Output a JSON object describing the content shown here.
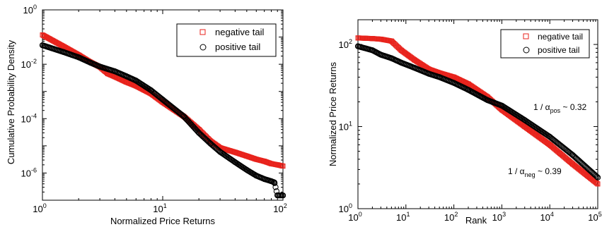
{
  "chart_data": [
    {
      "type": "scatter",
      "xlabel": "Normalized Price Returns",
      "ylabel": "Cumulative Probability Density",
      "xscale": "log",
      "yscale": "log",
      "xlim": [
        1,
        100
      ],
      "ylim": [
        1e-07,
        1
      ],
      "xtick_labels": [
        {
          "base": "10",
          "exp": "0"
        },
        {
          "base": "10",
          "exp": "1"
        },
        {
          "base": "10",
          "exp": "2"
        }
      ],
      "ytick_labels": [
        {
          "base": "10",
          "exp": "0"
        },
        {
          "base": "10",
          "exp": "-2"
        },
        {
          "base": "10",
          "exp": "-4"
        },
        {
          "base": "10",
          "exp": "-6"
        }
      ],
      "legend_position": "top-right",
      "series": [
        {
          "name": "negative tail",
          "marker": "square",
          "color": "#e8231c",
          "points": [
            [
              1.0,
              0.12
            ],
            [
              1.5,
              0.045
            ],
            [
              2.0,
              0.022
            ],
            [
              2.5,
              0.012
            ],
            [
              3.0,
              0.008
            ],
            [
              3.5,
              0.0045
            ],
            [
              4.0,
              0.0035
            ],
            [
              5.0,
              0.0022
            ],
            [
              6.0,
              0.0016
            ],
            [
              8.0,
              0.00083
            ],
            [
              10,
              0.0004
            ],
            [
              15,
              0.00012
            ],
            [
              20,
              4e-05
            ],
            [
              25,
              1.5e-05
            ],
            [
              30,
              8.5e-06
            ],
            [
              40,
              5.8e-06
            ],
            [
              50,
              4.2e-06
            ],
            [
              60,
              3.2e-06
            ],
            [
              70,
              2.7e-06
            ],
            [
              80,
              2.2e-06
            ],
            [
              90,
              2e-06
            ],
            [
              100,
              1.8e-06
            ]
          ]
        },
        {
          "name": "positive tail",
          "marker": "circle",
          "color": "#000000",
          "points": [
            [
              1.0,
              0.05
            ],
            [
              1.5,
              0.028
            ],
            [
              2.0,
              0.018
            ],
            [
              2.5,
              0.0115
            ],
            [
              3.0,
              0.0082
            ],
            [
              4.0,
              0.0055
            ],
            [
              5.0,
              0.0036
            ],
            [
              6.0,
              0.0025
            ],
            [
              8.0,
              0.0011
            ],
            [
              10,
              0.0005
            ],
            [
              15,
              0.00012
            ],
            [
              20,
              3e-05
            ],
            [
              25,
              1.2e-05
            ],
            [
              30,
              6e-06
            ],
            [
              40,
              2.5e-06
            ],
            [
              50,
              1.3e-06
            ],
            [
              60,
              8e-07
            ],
            [
              70,
              6e-07
            ],
            [
              80,
              5e-07
            ],
            [
              85,
              4.5e-07
            ],
            [
              90,
              1.5e-07
            ],
            [
              100,
              1.5e-07
            ]
          ]
        }
      ]
    },
    {
      "type": "scatter",
      "xlabel": "Rank",
      "ylabel": "Normalized Price Returns",
      "xscale": "log",
      "yscale": "log",
      "xlim": [
        1,
        100000
      ],
      "ylim": [
        1,
        200
      ],
      "xtick_labels": [
        {
          "base": "10",
          "exp": "0"
        },
        {
          "base": "10",
          "exp": "1"
        },
        {
          "base": "10",
          "exp": "2"
        },
        {
          "base": "10",
          "exp": "3"
        },
        {
          "base": "10",
          "exp": "4"
        },
        {
          "base": "10",
          "exp": "5"
        }
      ],
      "ytick_labels": [
        {
          "base": "10",
          "exp": "0"
        },
        {
          "base": "10",
          "exp": "1"
        },
        {
          "base": "10",
          "exp": "2"
        }
      ],
      "legend_position": "top-right",
      "annotations": [
        {
          "prefix": "1 / α",
          "sub": "pos",
          "suffix": " ~ 0.32"
        },
        {
          "prefix": "1 / α",
          "sub": "neg",
          "suffix": " ~ 0.39"
        }
      ],
      "series": [
        {
          "name": "negative tail",
          "marker": "square",
          "color": "#e8231c",
          "points": [
            [
              1,
              120
            ],
            [
              2,
              118
            ],
            [
              3,
              116
            ],
            [
              5,
              110
            ],
            [
              8,
              85
            ],
            [
              15,
              65
            ],
            [
              30,
              50
            ],
            [
              50,
              45
            ],
            [
              100,
              40
            ],
            [
              200,
              33
            ],
            [
              500,
              23
            ],
            [
              1000,
              16
            ],
            [
              3000,
              10
            ],
            [
              10000,
              6
            ],
            [
              30000,
              3.5
            ],
            [
              100000,
              2
            ]
          ]
        },
        {
          "name": "positive tail",
          "marker": "circle",
          "color": "#000000",
          "points": [
            [
              1,
              95
            ],
            [
              2,
              85
            ],
            [
              3,
              75
            ],
            [
              5,
              68
            ],
            [
              8,
              60
            ],
            [
              15,
              52
            ],
            [
              30,
              44
            ],
            [
              50,
              40
            ],
            [
              100,
              34
            ],
            [
              200,
              28
            ],
            [
              500,
              21
            ],
            [
              1000,
              18
            ],
            [
              3000,
              12
            ],
            [
              10000,
              7.5
            ],
            [
              30000,
              4.5
            ],
            [
              100000,
              2.4
            ]
          ]
        }
      ]
    }
  ]
}
